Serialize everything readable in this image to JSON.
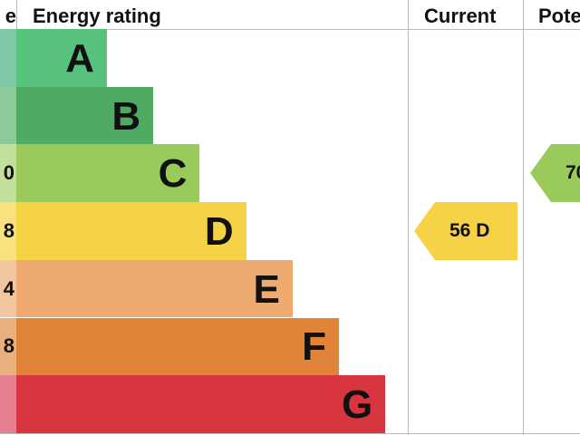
{
  "chart_data": {
    "type": "bar",
    "headers": {
      "score_partial": "e",
      "rating": "Energy rating",
      "current": "Current",
      "potential_partial": "Pote"
    },
    "bands": [
      {
        "letter": "A",
        "score_partial": "",
        "color": "#57c17e",
        "light": "#7fc8a6"
      },
      {
        "letter": "B",
        "score_partial": "",
        "color": "#4fab64",
        "light": "#8ec99a"
      },
      {
        "letter": "C",
        "score_partial": "0",
        "color": "#9acb5a",
        "light": "#c3e09a"
      },
      {
        "letter": "D",
        "score_partial": "8",
        "color": "#f6d247",
        "light": "#f9e27e"
      },
      {
        "letter": "E",
        "score_partial": "4",
        "color": "#eeaa6f",
        "light": "#f2c6a0"
      },
      {
        "letter": "F",
        "score_partial": "8",
        "color": "#e0843a",
        "light": "#e8b07f"
      },
      {
        "letter": "G",
        "score_partial": "",
        "color": "#d7353f",
        "light": "#e48092"
      }
    ],
    "current": {
      "value": 56,
      "band": "D",
      "label": "56  D",
      "color": "#f6d247"
    },
    "potential": {
      "value_partial": "70",
      "band": "C",
      "label": "70",
      "color": "#9acb5a"
    }
  }
}
